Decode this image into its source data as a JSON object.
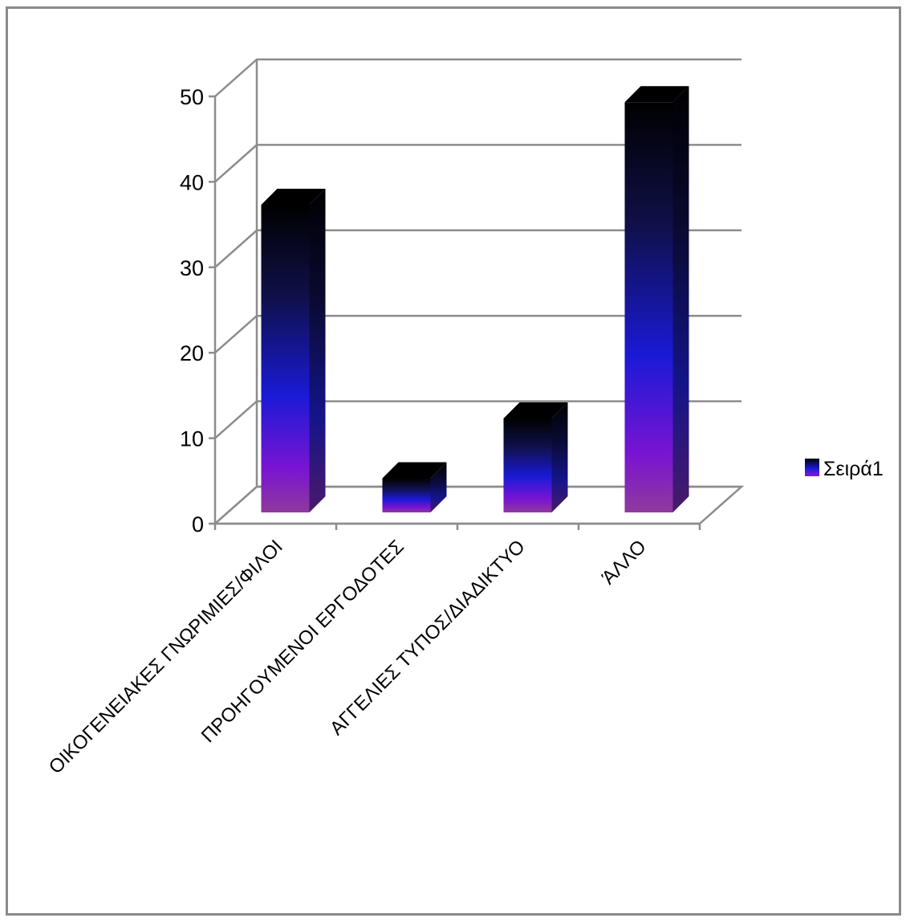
{
  "chart_data": {
    "type": "bar",
    "style": "3d-column",
    "categories": [
      "ΟΙΚΟΓΕΝΕΙΑΚΕΣ ΓΝΩΡΙΜΙΕΣ/ΦΙΛΟΙ",
      "ΠΡΟΗΓΟΥΜΕΝΟΙ ΕΡΓΟΔΟΤΕΣ",
      "ΑΓΓΕΛΙΕΣ ΤΥΠΟΣ/ΔΙΑΔΙΚΤΥΟ",
      "ΆΛΛΟ"
    ],
    "series": [
      {
        "name": "Σειρά1",
        "values": [
          36,
          4,
          11,
          48
        ]
      }
    ],
    "yticks": [
      0,
      10,
      20,
      30,
      40,
      50
    ],
    "ylim": [
      0,
      50
    ],
    "grid": true,
    "legend_position": "right",
    "colors": {
      "bar_top": "#000000",
      "bar_mid": "#1a1ad6",
      "bar_bottom": "#8a1ad6",
      "bar_base": "#8a3aa0",
      "grid": "#8c8c8c",
      "legend_swatch": "#1a1aa0"
    }
  }
}
